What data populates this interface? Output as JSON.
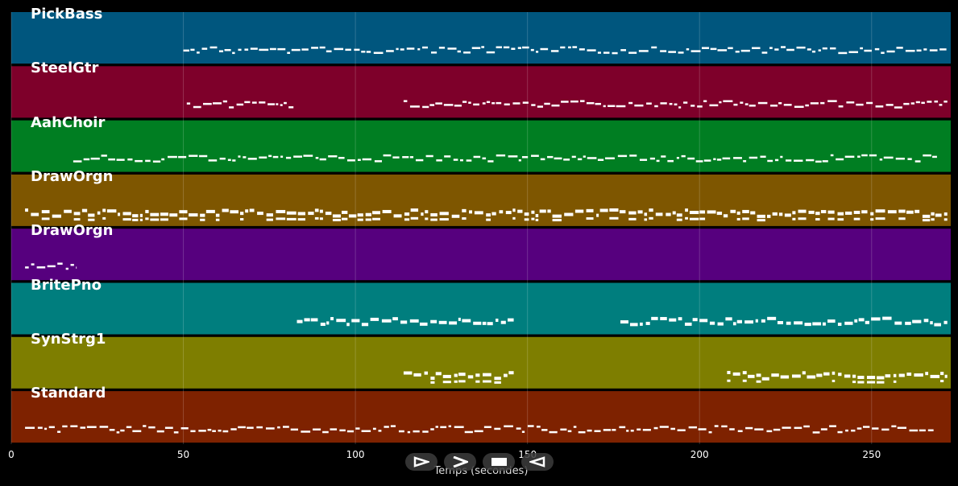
{
  "x_axis": {
    "label": "Temps (secondes)",
    "min": 0,
    "max": 273,
    "ticks": [
      0,
      50,
      100,
      150,
      200,
      250
    ],
    "tick_labels": [
      "0",
      "50",
      "100",
      "150",
      "200",
      "250"
    ]
  },
  "tracks": [
    {
      "name": "PickBass",
      "color": "#00567e",
      "segments": [
        [
          50,
          272
        ]
      ]
    },
    {
      "name": "SteelGtr",
      "color": "#7e002a",
      "segments": [
        [
          51,
          82
        ],
        [
          114,
          272
        ]
      ]
    },
    {
      "name": "AahChoir",
      "color": "#007e22",
      "segments": [
        [
          18,
          269
        ]
      ]
    },
    {
      "name": "DrawOrgn",
      "color": "#7e5600",
      "segments": [
        [
          4,
          272
        ]
      ]
    },
    {
      "name": "DrawOrgn",
      "color": "#56007e",
      "segments": [
        [
          4,
          19
        ]
      ]
    },
    {
      "name": "BritePno",
      "color": "#007e7e",
      "segments": [
        [
          83,
          146
        ],
        [
          177,
          272
        ]
      ]
    },
    {
      "name": "SynStrg1",
      "color": "#7e7e00",
      "segments": [
        [
          114,
          146
        ],
        [
          208,
          272
        ]
      ]
    },
    {
      "name": "Standard",
      "color": "#7e2200",
      "segments": [
        [
          4,
          268
        ]
      ]
    }
  ],
  "note_color": "#ffffff",
  "transport": {
    "buttons": [
      {
        "name": "play-icon"
      },
      {
        "name": "forward-icon"
      },
      {
        "name": "stop-icon"
      },
      {
        "name": "rewind-icon"
      }
    ]
  }
}
